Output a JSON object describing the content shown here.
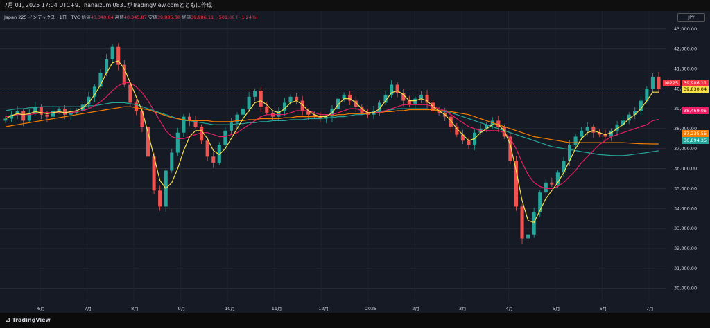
{
  "header": {
    "text": "7月 01, 2025 17:04 UTC+9、hanaizumi0831がTradingView.comとともに作成"
  },
  "legend": {
    "symbol": "Japan 225 インデックス · 1日 · TVC",
    "open_label": "始値",
    "open_value": "40,340.64",
    "high_label": "高値",
    "high_value": "40,345.87",
    "low_label": "安値",
    "low_value": "39,885.38",
    "close_label": "終値",
    "close_value": "39,986.11",
    "change_value": "−501.06 (−1.24%)"
  },
  "currency": "JPY",
  "footer": {
    "brand": "TradingView"
  },
  "price_tags": {
    "symbol": "NI225",
    "last": "39,986.11",
    "ma_fast": "39,830.04",
    "ma_mid": "38,469.05",
    "ma_slow": "37,235.55",
    "ma_long": "36,894.35"
  },
  "colors": {
    "up": "#26a69a",
    "down": "#ef5350",
    "ma_fast": "#f5e04a",
    "ma_mid": "#e91e63",
    "ma_slow": "#f57c00",
    "ma_long": "#26a69a"
  },
  "chart_data": {
    "type": "candlestick",
    "y_ticks": [
      "30,000.00",
      "31,000.00",
      "32,000.00",
      "33,000.00",
      "34,000.00",
      "35,000.00",
      "36,000.00",
      "37,000.00",
      "38,000.00",
      "39,000.00",
      "40,000.00",
      "41,000.00",
      "42,000.00",
      "43,000.00"
    ],
    "ylim": [
      29500,
      43200
    ],
    "x_ticks": [
      "6月",
      "7月",
      "8月",
      "9月",
      "10月",
      "11月",
      "12月",
      "2025",
      "2月",
      "3月",
      "4月",
      "5月",
      "6月",
      "7月"
    ],
    "close_series": [
      38500,
      38700,
      38900,
      38400,
      38800,
      39100,
      38700,
      38600,
      38900,
      39000,
      38700,
      38800,
      38900,
      39200,
      39600,
      40100,
      40800,
      41500,
      42100,
      41200,
      40200,
      39300,
      38900,
      38100,
      36600,
      34900,
      34100,
      35900,
      36800,
      37800,
      38600,
      38400,
      38100,
      37400,
      36600,
      36300,
      37200,
      37900,
      38300,
      38700,
      39000,
      39600,
      39900,
      39100,
      38800,
      38600,
      38900,
      39300,
      39600,
      39400,
      38900,
      38700,
      38600,
      38500,
      38600,
      39000,
      39500,
      39700,
      39400,
      39100,
      38800,
      38700,
      38900,
      39300,
      39700,
      40200,
      39800,
      39400,
      39200,
      39500,
      39700,
      39300,
      38900,
      38800,
      38600,
      38100,
      37700,
      37400,
      37200,
      37800,
      38000,
      38200,
      38400,
      38100,
      37600,
      36400,
      34100,
      32500,
      32700,
      33800,
      34800,
      35300,
      35200,
      35800,
      36400,
      37200,
      37600,
      37900,
      38100,
      37800,
      37700,
      37600,
      37900,
      38200,
      38400,
      38700,
      38900,
      39400,
      40000,
      40600,
      39986
    ],
    "ma_fast": [
      38500,
      38650,
      38750,
      38700,
      38750,
      38850,
      38800,
      38750,
      38800,
      38850,
      38800,
      38850,
      38900,
      39050,
      39300,
      39700,
      40200,
      40800,
      41300,
      41400,
      41000,
      40300,
      39600,
      38900,
      37800,
      36600,
      35400,
      35000,
      35300,
      36000,
      36900,
      37600,
      37900,
      37900,
      37500,
      36900,
      36700,
      37000,
      37500,
      38000,
      38500,
      38900,
      39300,
      39400,
      39200,
      38900,
      38800,
      39000,
      39300,
      39400,
      39200,
      38900,
      38700,
      38600,
      38600,
      38800,
      39200,
      39500,
      39500,
      39300,
      39000,
      38800,
      38800,
      39000,
      39400,
      39800,
      39900,
      39700,
      39400,
      39400,
      39500,
      39400,
      39100,
      38900,
      38700,
      38400,
      38000,
      37700,
      37400,
      37500,
      37800,
      38000,
      38200,
      38200,
      37900,
      37200,
      35900,
      34400,
      33400,
      33300,
      33900,
      34500,
      34900,
      35300,
      35800,
      36400,
      37000,
      37500,
      37800,
      37900,
      37800,
      37700,
      37800,
      38000,
      38200,
      38500,
      38700,
      39000,
      39400,
      39830,
      39830
    ],
    "ma_mid": [
      38600,
      38650,
      38700,
      38700,
      38700,
      38750,
      38800,
      38800,
      38800,
      38800,
      38800,
      38800,
      38850,
      38900,
      39000,
      39150,
      39350,
      39600,
      39900,
      40150,
      40300,
      40300,
      40100,
      39800,
      39400,
      38900,
      38400,
      37900,
      37600,
      37500,
      37500,
      37600,
      37700,
      37800,
      37800,
      37700,
      37600,
      37600,
      37700,
      37800,
      38000,
      38200,
      38400,
      38600,
      38700,
      38700,
      38700,
      38700,
      38800,
      38900,
      38900,
      38900,
      38800,
      38700,
      38700,
      38700,
      38800,
      38900,
      39000,
      39000,
      38900,
      38800,
      38800,
      38800,
      38900,
      39000,
      39100,
      39200,
      39200,
      39200,
      39200,
      39200,
      39100,
      39000,
      38900,
      38700,
      38500,
      38300,
      38100,
      38000,
      37900,
      37900,
      37900,
      37900,
      37800,
      37500,
      37000,
      36300,
      35700,
      35300,
      35100,
      35000,
      35000,
      35100,
      35300,
      35600,
      35900,
      36300,
      36600,
      36900,
      37200,
      37400,
      37600,
      37700,
      37800,
      37900,
      38000,
      38100,
      38200,
      38400,
      38469
    ],
    "ma_slow": [
      38100,
      38150,
      38200,
      38250,
      38300,
      38350,
      38400,
      38450,
      38500,
      38550,
      38600,
      38650,
      38700,
      38750,
      38800,
      38850,
      38900,
      38950,
      39000,
      39050,
      39100,
      39100,
      39050,
      39000,
      38950,
      38850,
      38750,
      38650,
      38550,
      38500,
      38450,
      38400,
      38400,
      38400,
      38400,
      38350,
      38350,
      38350,
      38350,
      38400,
      38400,
      38450,
      38450,
      38500,
      38500,
      38500,
      38500,
      38550,
      38550,
      38600,
      38600,
      38600,
      38600,
      38600,
      38650,
      38650,
      38700,
      38700,
      38750,
      38750,
      38750,
      38750,
      38800,
      38800,
      38850,
      38850,
      38900,
      38900,
      38950,
      38950,
      38950,
      38950,
      38950,
      38900,
      38900,
      38850,
      38800,
      38750,
      38700,
      38600,
      38500,
      38400,
      38300,
      38200,
      38100,
      38000,
      37900,
      37800,
      37700,
      37600,
      37550,
      37500,
      37450,
      37400,
      37350,
      37300,
      37300,
      37300,
      37300,
      37300,
      37300,
      37300,
      37300,
      37300,
      37300,
      37280,
      37260,
      37250,
      37240,
      37236,
      37236
    ],
    "ma_long": [
      38900,
      38950,
      39000,
      39000,
      39050,
      39050,
      39100,
      39100,
      39100,
      39100,
      39100,
      39100,
      39100,
      39100,
      39150,
      39150,
      39200,
      39250,
      39300,
      39300,
      39300,
      39250,
      39200,
      39100,
      39000,
      38900,
      38800,
      38700,
      38600,
      38500,
      38400,
      38400,
      38350,
      38300,
      38250,
      38200,
      38200,
      38200,
      38200,
      38250,
      38250,
      38300,
      38300,
      38350,
      38350,
      38400,
      38400,
      38400,
      38450,
      38450,
      38450,
      38500,
      38500,
      38500,
      38550,
      38550,
      38600,
      38600,
      38650,
      38700,
      38700,
      38750,
      38800,
      38850,
      38900,
      38950,
      39000,
      39000,
      39000,
      39000,
      39000,
      39000,
      38950,
      38900,
      38850,
      38800,
      38700,
      38600,
      38500,
      38400,
      38300,
      38200,
      38100,
      38000,
      37900,
      37800,
      37700,
      37600,
      37500,
      37400,
      37300,
      37200,
      37100,
      37050,
      37000,
      36950,
      36900,
      36850,
      36800,
      36750,
      36700,
      36680,
      36660,
      36650,
      36650,
      36680,
      36720,
      36760,
      36800,
      36850,
      36894
    ]
  }
}
